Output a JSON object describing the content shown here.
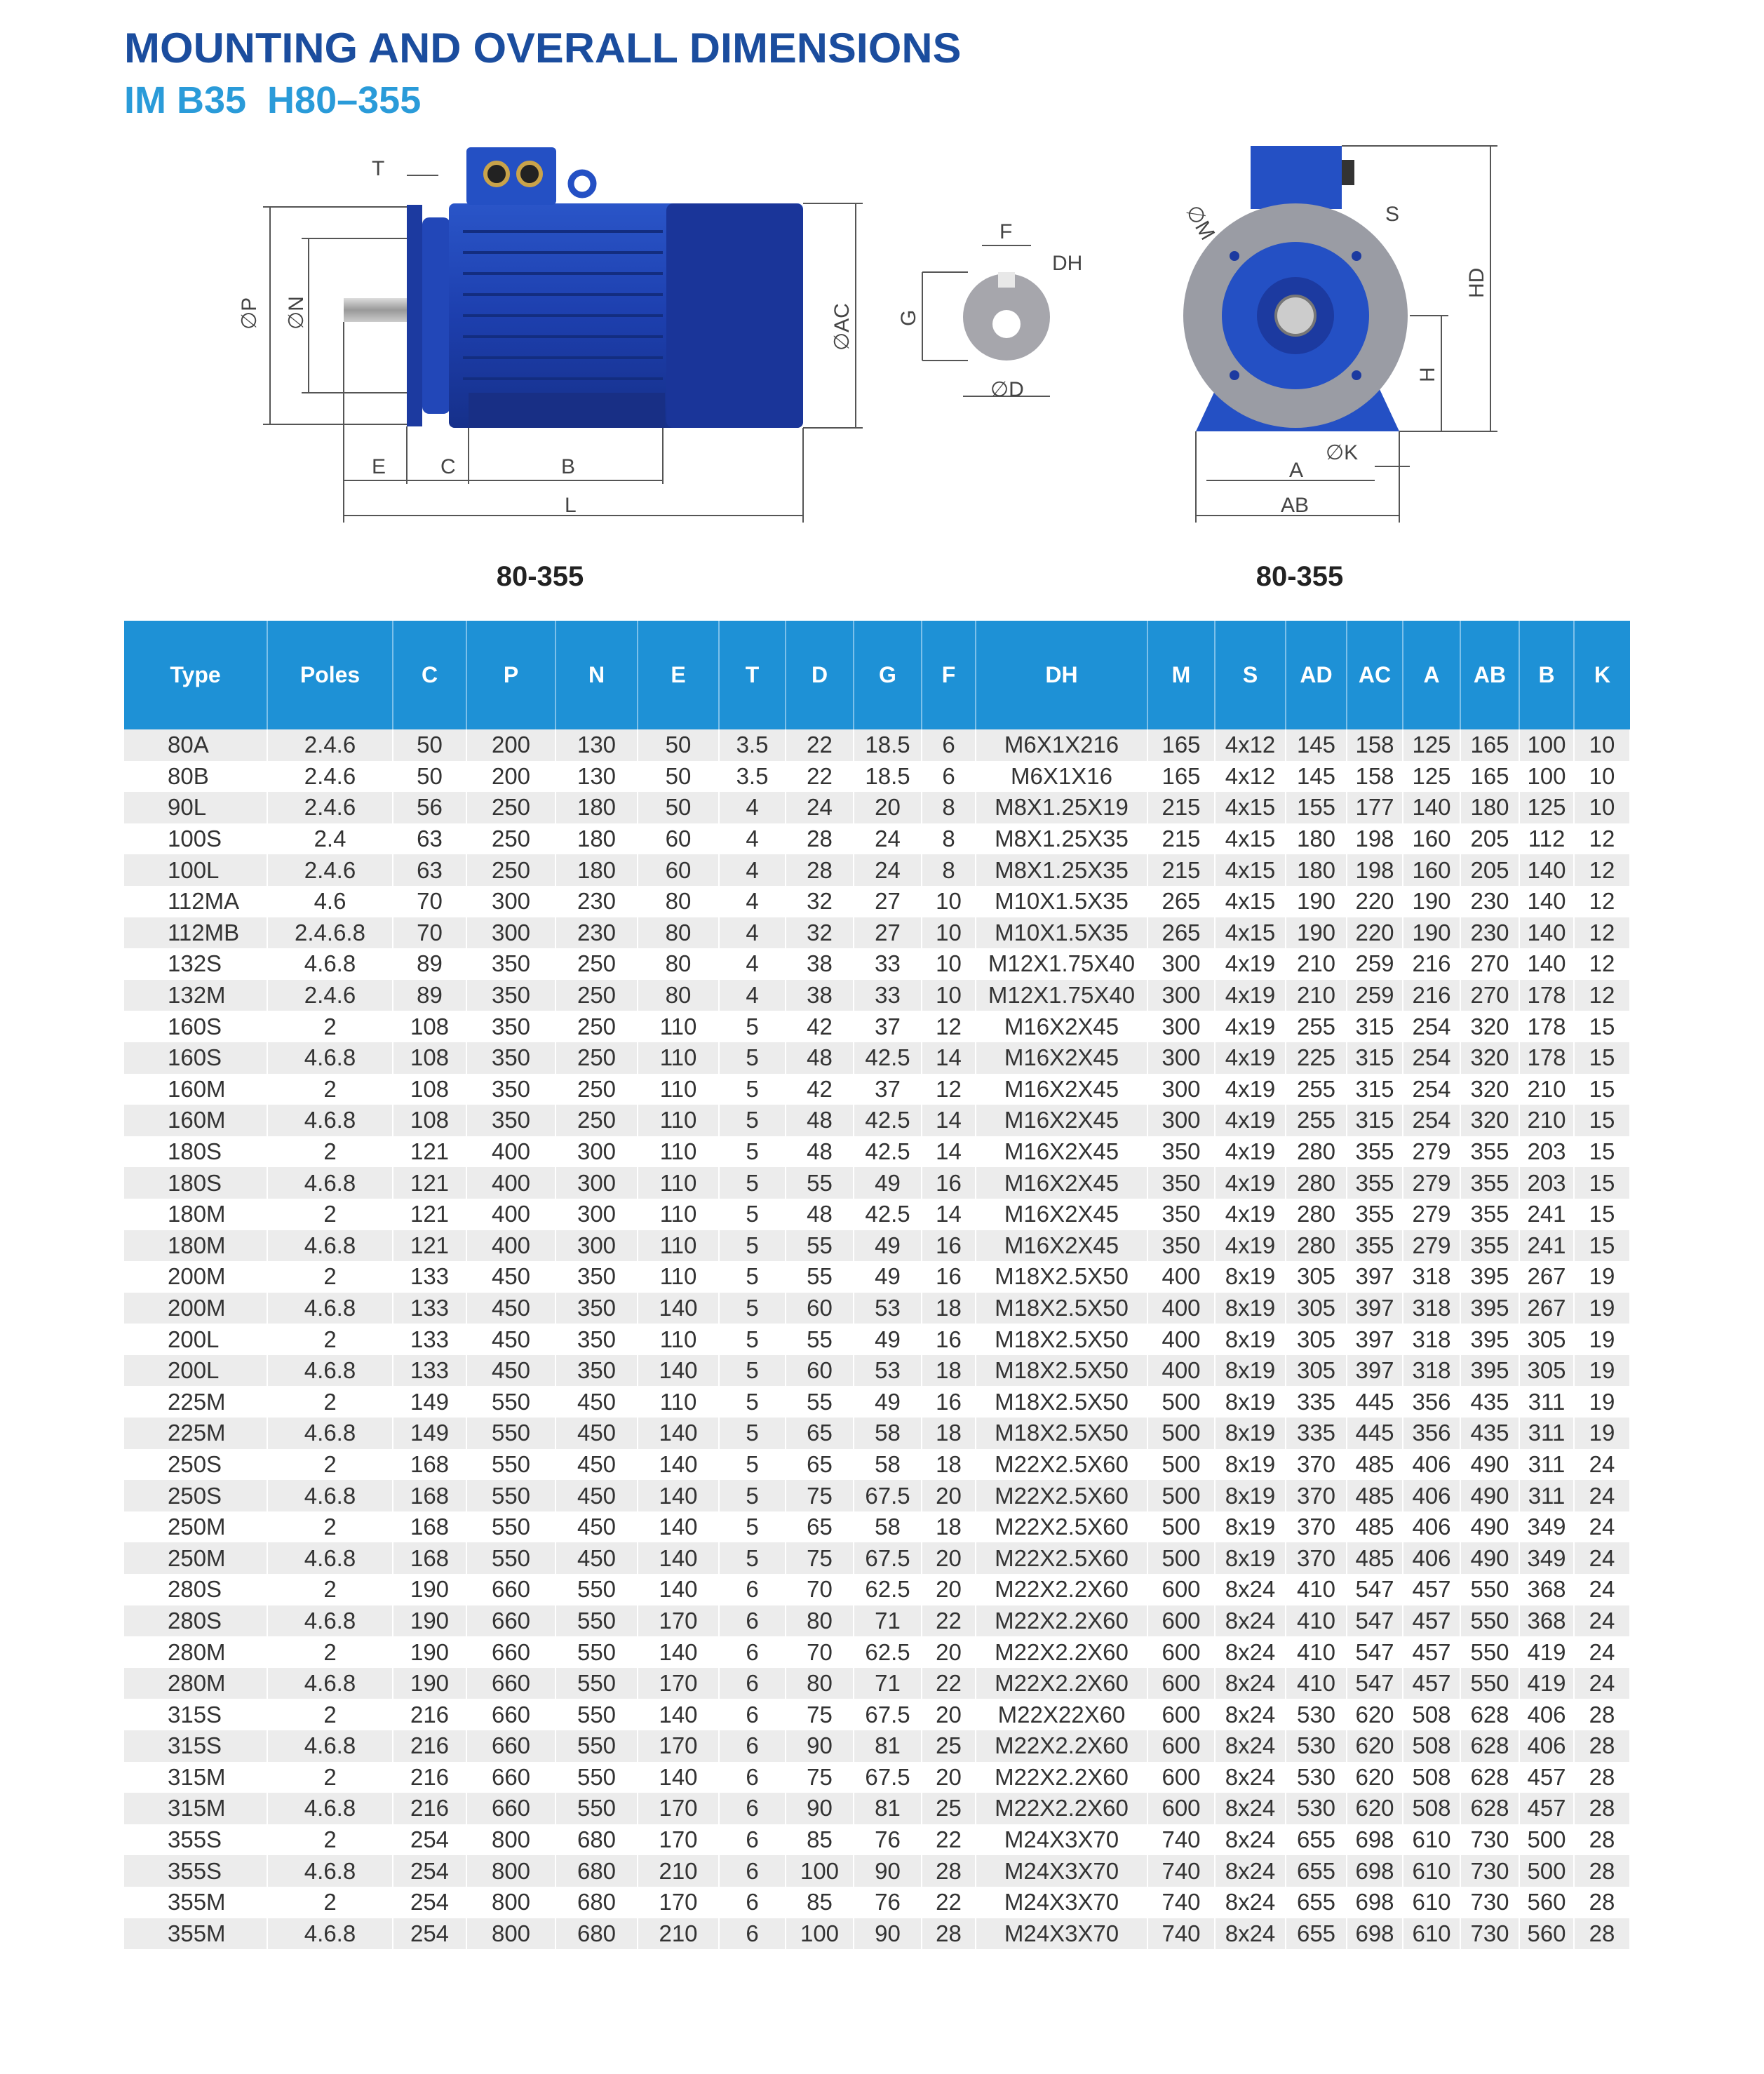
{
  "header": {
    "title": "MOUNTING AND OVERALL DIMENSIONS",
    "subtitle": "IM B35  H80–355"
  },
  "diagram": {
    "side_labels": {
      "T": "T",
      "P": "∅P",
      "N": "∅N",
      "AC": "∅AC",
      "E": "E",
      "C": "C",
      "B": "B",
      "L": "L"
    },
    "shaft_labels": {
      "F": "F",
      "DH": "DH",
      "G": "G",
      "D": "∅D"
    },
    "front_labels": {
      "M": "∅M",
      "S": "S",
      "HD": "HD",
      "H": "H",
      "K": "∅K",
      "A": "A",
      "AB": "AB"
    },
    "caption_left": "80-355",
    "caption_right": "80-355",
    "colors": {
      "motor_blue": "#1f3fa8",
      "flange_gray": "#9a9ca4",
      "accent": "#1e91d6"
    }
  },
  "table": {
    "columns": [
      "Type",
      "Poles",
      "C",
      "P",
      "N",
      "E",
      "T",
      "D",
      "G",
      "F",
      "DH",
      "M",
      "S",
      "AD",
      "AC",
      "A",
      "AB",
      "B",
      "K"
    ],
    "rows": [
      [
        "80A",
        "2.4.6",
        "50",
        "200",
        "130",
        "50",
        "3.5",
        "22",
        "18.5",
        "6",
        "M6X1X216",
        "165",
        "4x12",
        "145",
        "158",
        "125",
        "165",
        "100",
        "10"
      ],
      [
        "80B",
        "2.4.6",
        "50",
        "200",
        "130",
        "50",
        "3.5",
        "22",
        "18.5",
        "6",
        "M6X1X16",
        "165",
        "4x12",
        "145",
        "158",
        "125",
        "165",
        "100",
        "10"
      ],
      [
        "90L",
        "2.4.6",
        "56",
        "250",
        "180",
        "50",
        "4",
        "24",
        "20",
        "8",
        "M8X1.25X19",
        "215",
        "4x15",
        "155",
        "177",
        "140",
        "180",
        "125",
        "10"
      ],
      [
        "100S",
        "2.4",
        "63",
        "250",
        "180",
        "60",
        "4",
        "28",
        "24",
        "8",
        "M8X1.25X35",
        "215",
        "4x15",
        "180",
        "198",
        "160",
        "205",
        "112",
        "12"
      ],
      [
        "100L",
        "2.4.6",
        "63",
        "250",
        "180",
        "60",
        "4",
        "28",
        "24",
        "8",
        "M8X1.25X35",
        "215",
        "4x15",
        "180",
        "198",
        "160",
        "205",
        "140",
        "12"
      ],
      [
        "112MA",
        "4.6",
        "70",
        "300",
        "230",
        "80",
        "4",
        "32",
        "27",
        "10",
        "M10X1.5X35",
        "265",
        "4x15",
        "190",
        "220",
        "190",
        "230",
        "140",
        "12"
      ],
      [
        "112MB",
        "2.4.6.8",
        "70",
        "300",
        "230",
        "80",
        "4",
        "32",
        "27",
        "10",
        "M10X1.5X35",
        "265",
        "4x15",
        "190",
        "220",
        "190",
        "230",
        "140",
        "12"
      ],
      [
        "132S",
        "4.6.8",
        "89",
        "350",
        "250",
        "80",
        "4",
        "38",
        "33",
        "10",
        "M12X1.75X40",
        "300",
        "4x19",
        "210",
        "259",
        "216",
        "270",
        "140",
        "12"
      ],
      [
        "132M",
        "2.4.6",
        "89",
        "350",
        "250",
        "80",
        "4",
        "38",
        "33",
        "10",
        "M12X1.75X40",
        "300",
        "4x19",
        "210",
        "259",
        "216",
        "270",
        "178",
        "12"
      ],
      [
        "160S",
        "2",
        "108",
        "350",
        "250",
        "110",
        "5",
        "42",
        "37",
        "12",
        "M16X2X45",
        "300",
        "4x19",
        "255",
        "315",
        "254",
        "320",
        "178",
        "15"
      ],
      [
        "160S",
        "4.6.8",
        "108",
        "350",
        "250",
        "110",
        "5",
        "48",
        "42.5",
        "14",
        "M16X2X45",
        "300",
        "4x19",
        "225",
        "315",
        "254",
        "320",
        "178",
        "15"
      ],
      [
        "160M",
        "2",
        "108",
        "350",
        "250",
        "110",
        "5",
        "42",
        "37",
        "12",
        "M16X2X45",
        "300",
        "4x19",
        "255",
        "315",
        "254",
        "320",
        "210",
        "15"
      ],
      [
        "160M",
        "4.6.8",
        "108",
        "350",
        "250",
        "110",
        "5",
        "48",
        "42.5",
        "14",
        "M16X2X45",
        "300",
        "4x19",
        "255",
        "315",
        "254",
        "320",
        "210",
        "15"
      ],
      [
        "180S",
        "2",
        "121",
        "400",
        "300",
        "110",
        "5",
        "48",
        "42.5",
        "14",
        "M16X2X45",
        "350",
        "4x19",
        "280",
        "355",
        "279",
        "355",
        "203",
        "15"
      ],
      [
        "180S",
        "4.6.8",
        "121",
        "400",
        "300",
        "110",
        "5",
        "55",
        "49",
        "16",
        "M16X2X45",
        "350",
        "4x19",
        "280",
        "355",
        "279",
        "355",
        "203",
        "15"
      ],
      [
        "180M",
        "2",
        "121",
        "400",
        "300",
        "110",
        "5",
        "48",
        "42.5",
        "14",
        "M16X2X45",
        "350",
        "4x19",
        "280",
        "355",
        "279",
        "355",
        "241",
        "15"
      ],
      [
        "180M",
        "4.6.8",
        "121",
        "400",
        "300",
        "110",
        "5",
        "55",
        "49",
        "16",
        "M16X2X45",
        "350",
        "4x19",
        "280",
        "355",
        "279",
        "355",
        "241",
        "15"
      ],
      [
        "200M",
        "2",
        "133",
        "450",
        "350",
        "110",
        "5",
        "55",
        "49",
        "16",
        "M18X2.5X50",
        "400",
        "8x19",
        "305",
        "397",
        "318",
        "395",
        "267",
        "19"
      ],
      [
        "200M",
        "4.6.8",
        "133",
        "450",
        "350",
        "140",
        "5",
        "60",
        "53",
        "18",
        "M18X2.5X50",
        "400",
        "8x19",
        "305",
        "397",
        "318",
        "395",
        "267",
        "19"
      ],
      [
        "200L",
        "2",
        "133",
        "450",
        "350",
        "110",
        "5",
        "55",
        "49",
        "16",
        "M18X2.5X50",
        "400",
        "8x19",
        "305",
        "397",
        "318",
        "395",
        "305",
        "19"
      ],
      [
        "200L",
        "4.6.8",
        "133",
        "450",
        "350",
        "140",
        "5",
        "60",
        "53",
        "18",
        "M18X2.5X50",
        "400",
        "8x19",
        "305",
        "397",
        "318",
        "395",
        "305",
        "19"
      ],
      [
        "225M",
        "2",
        "149",
        "550",
        "450",
        "110",
        "5",
        "55",
        "49",
        "16",
        "M18X2.5X50",
        "500",
        "8x19",
        "335",
        "445",
        "356",
        "435",
        "311",
        "19"
      ],
      [
        "225M",
        "4.6.8",
        "149",
        "550",
        "450",
        "140",
        "5",
        "65",
        "58",
        "18",
        "M18X2.5X50",
        "500",
        "8x19",
        "335",
        "445",
        "356",
        "435",
        "311",
        "19"
      ],
      [
        "250S",
        "2",
        "168",
        "550",
        "450",
        "140",
        "5",
        "65",
        "58",
        "18",
        "M22X2.5X60",
        "500",
        "8x19",
        "370",
        "485",
        "406",
        "490",
        "311",
        "24"
      ],
      [
        "250S",
        "4.6.8",
        "168",
        "550",
        "450",
        "140",
        "5",
        "75",
        "67.5",
        "20",
        "M22X2.5X60",
        "500",
        "8x19",
        "370",
        "485",
        "406",
        "490",
        "311",
        "24"
      ],
      [
        "250M",
        "2",
        "168",
        "550",
        "450",
        "140",
        "5",
        "65",
        "58",
        "18",
        "M22X2.5X60",
        "500",
        "8x19",
        "370",
        "485",
        "406",
        "490",
        "349",
        "24"
      ],
      [
        "250M",
        "4.6.8",
        "168",
        "550",
        "450",
        "140",
        "5",
        "75",
        "67.5",
        "20",
        "M22X2.5X60",
        "500",
        "8x19",
        "370",
        "485",
        "406",
        "490",
        "349",
        "24"
      ],
      [
        "280S",
        "2",
        "190",
        "660",
        "550",
        "140",
        "6",
        "70",
        "62.5",
        "20",
        "M22X2.2X60",
        "600",
        "8x24",
        "410",
        "547",
        "457",
        "550",
        "368",
        "24"
      ],
      [
        "280S",
        "4.6.8",
        "190",
        "660",
        "550",
        "170",
        "6",
        "80",
        "71",
        "22",
        "M22X2.2X60",
        "600",
        "8x24",
        "410",
        "547",
        "457",
        "550",
        "368",
        "24"
      ],
      [
        "280M",
        "2",
        "190",
        "660",
        "550",
        "140",
        "6",
        "70",
        "62.5",
        "20",
        "M22X2.2X60",
        "600",
        "8x24",
        "410",
        "547",
        "457",
        "550",
        "419",
        "24"
      ],
      [
        "280M",
        "4.6.8",
        "190",
        "660",
        "550",
        "170",
        "6",
        "80",
        "71",
        "22",
        "M22X2.2X60",
        "600",
        "8x24",
        "410",
        "547",
        "457",
        "550",
        "419",
        "24"
      ],
      [
        "315S",
        "2",
        "216",
        "660",
        "550",
        "140",
        "6",
        "75",
        "67.5",
        "20",
        "M22X22X60",
        "600",
        "8x24",
        "530",
        "620",
        "508",
        "628",
        "406",
        "28"
      ],
      [
        "315S",
        "4.6.8",
        "216",
        "660",
        "550",
        "170",
        "6",
        "90",
        "81",
        "25",
        "M22X2.2X60",
        "600",
        "8x24",
        "530",
        "620",
        "508",
        "628",
        "406",
        "28"
      ],
      [
        "315M",
        "2",
        "216",
        "660",
        "550",
        "140",
        "6",
        "75",
        "67.5",
        "20",
        "M22X2.2X60",
        "600",
        "8x24",
        "530",
        "620",
        "508",
        "628",
        "457",
        "28"
      ],
      [
        "315M",
        "4.6.8",
        "216",
        "660",
        "550",
        "170",
        "6",
        "90",
        "81",
        "25",
        "M22X2.2X60",
        "600",
        "8x24",
        "530",
        "620",
        "508",
        "628",
        "457",
        "28"
      ],
      [
        "355S",
        "2",
        "254",
        "800",
        "680",
        "170",
        "6",
        "85",
        "76",
        "22",
        "M24X3X70",
        "740",
        "8x24",
        "655",
        "698",
        "610",
        "730",
        "500",
        "28"
      ],
      [
        "355S",
        "4.6.8",
        "254",
        "800",
        "680",
        "210",
        "6",
        "100",
        "90",
        "28",
        "M24X3X70",
        "740",
        "8x24",
        "655",
        "698",
        "610",
        "730",
        "500",
        "28"
      ],
      [
        "355M",
        "2",
        "254",
        "800",
        "680",
        "170",
        "6",
        "85",
        "76",
        "22",
        "M24X3X70",
        "740",
        "8x24",
        "655",
        "698",
        "610",
        "730",
        "560",
        "28"
      ],
      [
        "355M",
        "4.6.8",
        "254",
        "800",
        "680",
        "210",
        "6",
        "100",
        "90",
        "28",
        "M24X3X70",
        "740",
        "8x24",
        "655",
        "698",
        "610",
        "730",
        "560",
        "28"
      ]
    ]
  }
}
